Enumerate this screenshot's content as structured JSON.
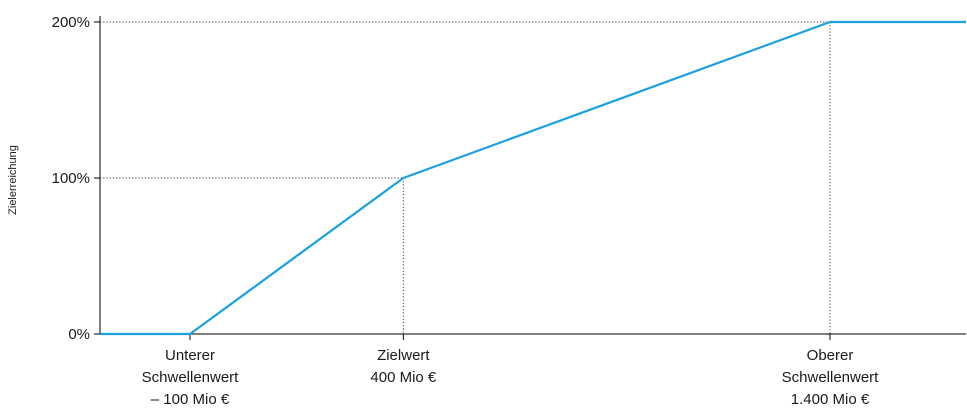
{
  "chart_data": {
    "type": "line",
    "title": "",
    "xlabel": "",
    "ylabel": "Zielerreichung",
    "line_color": "#1a9fe0",
    "axis_color": "#000000",
    "ylim": [
      0,
      200
    ],
    "xlim": [
      -100,
      1400
    ],
    "y_ticks": [
      {
        "value": 0,
        "label": "0%"
      },
      {
        "value": 100,
        "label": "100%"
      },
      {
        "value": 200,
        "label": "200%"
      }
    ],
    "x_markers": [
      {
        "value": -100,
        "lines": [
          "Unterer",
          "Schwellenwert",
          "– 100 Mio €"
        ],
        "guide": false
      },
      {
        "value": 400,
        "lines": [
          "Zielwert",
          "400 Mio €"
        ],
        "guide": true
      },
      {
        "value": 1400,
        "lines": [
          "Oberer",
          "Schwellenwert",
          "1.400 Mio €"
        ],
        "guide": true
      }
    ],
    "series": [
      {
        "x": [
          -400,
          -100,
          400,
          1400,
          1850
        ],
        "y": [
          0,
          0,
          100,
          200,
          200
        ]
      }
    ]
  }
}
